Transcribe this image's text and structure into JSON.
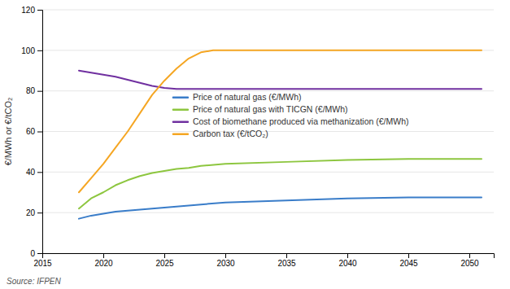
{
  "chart_data": {
    "type": "line",
    "ylabel": "€/MWh or €/tCO₂",
    "source": "Source: IFPEN",
    "xlim": [
      2015,
      2052
    ],
    "xticks": [
      2015,
      2020,
      2025,
      2030,
      2035,
      2040,
      2045,
      2050
    ],
    "ylim": [
      0,
      120
    ],
    "yticks": [
      0,
      20,
      40,
      60,
      80,
      100,
      120
    ],
    "grid": true,
    "legend": "center",
    "series": [
      {
        "name": "Price of natural gas (€/MWh)",
        "color": "#3A7DC9",
        "x": [
          2018,
          2019,
          2020,
          2021,
          2022,
          2023,
          2024,
          2025,
          2026,
          2027,
          2028,
          2030,
          2035,
          2040,
          2045,
          2051
        ],
        "values": [
          17,
          18.5,
          19.5,
          20.5,
          21,
          21.5,
          22,
          22.5,
          23,
          23.5,
          24,
          25,
          26,
          27,
          27.5,
          27.5
        ]
      },
      {
        "name": "Price of natural gas with TICGN (€/MWh)",
        "color": "#8DC63F",
        "x": [
          2018,
          2019,
          2020,
          2021,
          2022,
          2023,
          2024,
          2025,
          2026,
          2027,
          2028,
          2030,
          2035,
          2040,
          2045,
          2051
        ],
        "values": [
          22,
          27,
          30,
          33.5,
          36,
          38,
          39.5,
          40.5,
          41.5,
          42,
          43,
          44,
          45,
          46,
          46.5,
          46.5
        ]
      },
      {
        "name": "Cost of biomethane produced via methanization (€/MWh)",
        "color": "#7030A0",
        "x": [
          2018,
          2019,
          2020,
          2021,
          2022,
          2023,
          2024,
          2025,
          2026,
          2027,
          2028,
          2029,
          2030,
          2035,
          2040,
          2045,
          2051
        ],
        "values": [
          90,
          89,
          88,
          87,
          85.5,
          84,
          82.5,
          81.5,
          81,
          81,
          81,
          81,
          81,
          81,
          81,
          81,
          81
        ]
      },
      {
        "name": "Carbon tax (€/tCO₂)",
        "color": "#F5A623",
        "x": [
          2018,
          2019,
          2020,
          2021,
          2022,
          2023,
          2024,
          2025,
          2026,
          2027,
          2028,
          2029,
          2030,
          2051
        ],
        "values": [
          30,
          37,
          44,
          52,
          60,
          69,
          78,
          85,
          91,
          96,
          99,
          100,
          100,
          100
        ]
      }
    ]
  }
}
